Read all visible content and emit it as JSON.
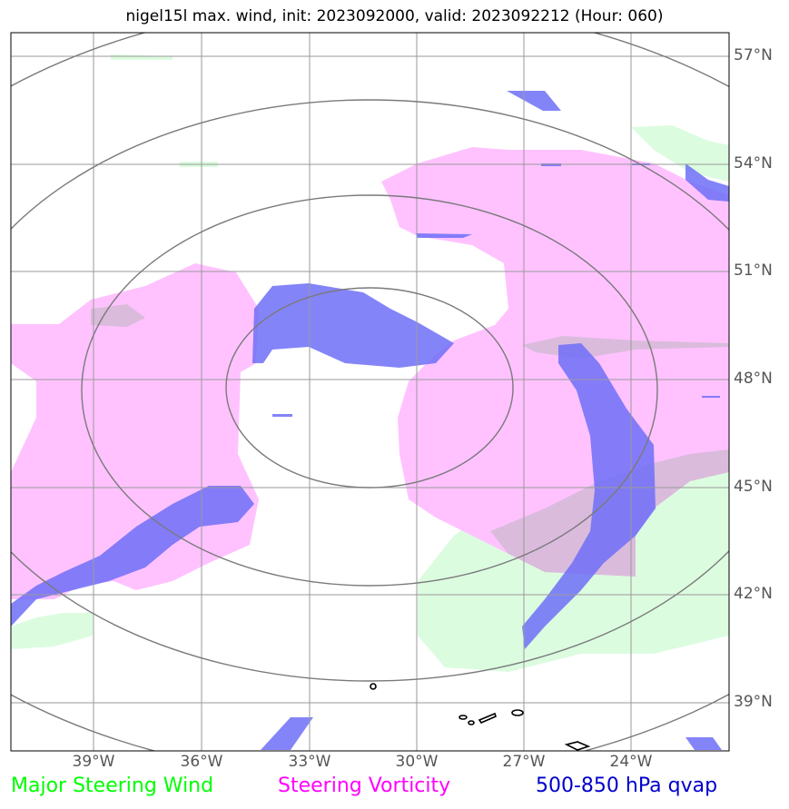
{
  "title": "nigel15l max. wind, init: 2023092000, valid: 2023092212 (Hour: 060)",
  "lon_labels": [
    "39°W",
    "36°W",
    "33°W",
    "30°W",
    "27°W",
    "24°W"
  ],
  "lat_labels": [
    "57°N",
    "54°N",
    "51°N",
    "48°N",
    "45°N",
    "42°N",
    "39°N"
  ],
  "legend": {
    "wind": "Major Steering Wind",
    "vorticity": "Steering Vorticity",
    "qvap": "500-850 hPa qvap"
  },
  "colors": {
    "wind": "#00ff00",
    "vorticity": "#ff00ff",
    "qvap": "#0000cc",
    "wind_fill": "#dcfce0",
    "vort_fill": "#ffc2ff",
    "qvap_fill": "#6f6ff8",
    "grid": "#9a9a9a",
    "rings": "#7a7a7a",
    "coast": "#000000"
  }
}
